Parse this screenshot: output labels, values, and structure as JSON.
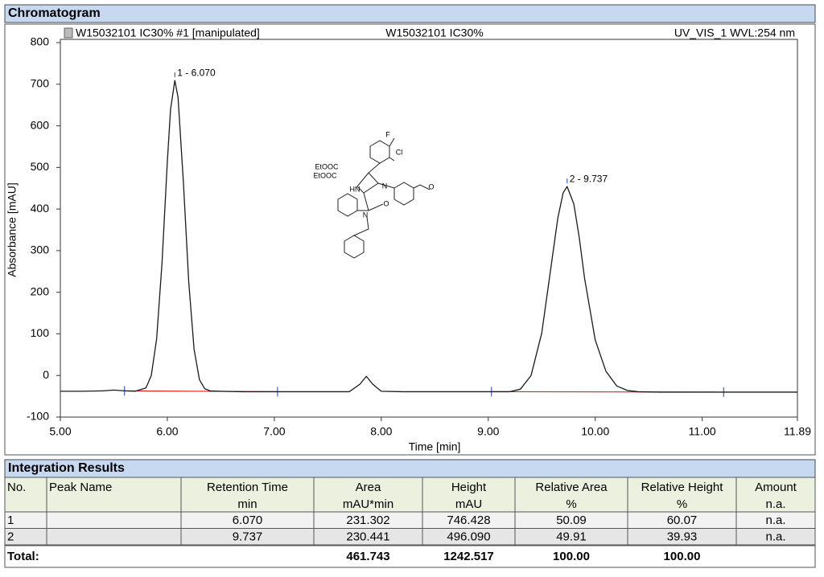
{
  "section_title": "Chromatogram",
  "chart_data": {
    "type": "line",
    "header": [
      "W15032101 IC30% #1 [manipulated]",
      "W15032101 IC30%",
      "UV_VIS_1 WVL:254 nm"
    ],
    "xlabel": "Time [min]",
    "ylabel": "Absorbance [mAU]",
    "xlim": [
      5,
      11.89
    ],
    "ylim": [
      -100,
      800
    ],
    "xticks": [
      {
        "value": 5,
        "label": "5.00"
      },
      {
        "value": 6,
        "label": "6.00"
      },
      {
        "value": 7,
        "label": "7.00"
      },
      {
        "value": 8,
        "label": "8.00"
      },
      {
        "value": 9,
        "label": "9.00"
      },
      {
        "value": 10,
        "label": "10.00"
      },
      {
        "value": 11,
        "label": "11.00"
      },
      11.89
    ],
    "yticks": [
      -100,
      0,
      100,
      200,
      300,
      400,
      500,
      600,
      700,
      800
    ],
    "color": "#1a1a1a",
    "baseline_color": "#e02020",
    "marker_color": "#1f3fbf",
    "x": [
      5.0,
      5.2,
      5.4,
      5.5,
      5.6,
      5.7,
      5.8,
      5.85,
      5.9,
      5.95,
      6.0,
      6.03,
      6.07,
      6.1,
      6.15,
      6.2,
      6.25,
      6.3,
      6.35,
      6.4,
      6.5,
      6.7,
      7.0,
      7.5,
      7.7,
      7.8,
      7.86,
      7.92,
      8.0,
      8.2,
      8.5,
      9.0,
      9.2,
      9.3,
      9.4,
      9.5,
      9.6,
      9.65,
      9.7,
      9.737,
      9.8,
      9.85,
      9.9,
      10.0,
      10.1,
      10.2,
      10.3,
      10.4,
      10.6,
      11.0,
      11.5,
      11.89
    ],
    "values": [
      -38,
      -38,
      -37,
      -35,
      -37,
      -38,
      -30,
      0,
      88,
      269,
      514,
      639,
      709,
      669,
      465,
      225,
      63,
      -10,
      -32,
      -37,
      -38,
      -39,
      -39,
      -39,
      -39,
      -21,
      -2,
      -21,
      -38,
      -39,
      -39,
      -39,
      -39,
      -33,
      0,
      102,
      286,
      378,
      439,
      454,
      412,
      332,
      234,
      85,
      10,
      -25,
      -36,
      -39,
      -40,
      -40,
      -40,
      -40
    ],
    "baselines": [
      {
        "x": [
          5.6,
          7.03
        ],
        "values": [
          -37,
          -39
        ]
      },
      {
        "x": [
          9.03,
          11.2
        ],
        "values": [
          -39,
          -40
        ]
      }
    ],
    "annotations": [
      {
        "text": "1 - 6.070",
        "x": 6.07,
        "y": 709
      },
      {
        "text": "2 - 9.737",
        "x": 9.737,
        "y": 454
      }
    ],
    "structure_labels": [
      "F",
      "Cl",
      "EtOOC",
      "EtOOC",
      "HN",
      "N",
      "O",
      "N",
      "O"
    ]
  },
  "table": {
    "title": "Integration Results",
    "header": [
      "No.",
      "Peak Name",
      "Retention Time",
      "Area",
      "Height",
      "Relative Area",
      "Relative Height",
      "Amount"
    ],
    "units": [
      "min",
      "mAU*min",
      "mAU",
      "%",
      "%",
      "n.a."
    ],
    "rows": [
      [
        "1",
        "6.070",
        "231.302",
        "746.428",
        "50.09",
        "60.07",
        "n.a."
      ],
      [
        "2",
        "9.737",
        "230.441",
        "496.090",
        "49.91",
        "39.93",
        "n.a."
      ]
    ],
    "total": [
      "Total:",
      "461.743",
      "1242.517",
      "100.00",
      "100.00"
    ]
  }
}
